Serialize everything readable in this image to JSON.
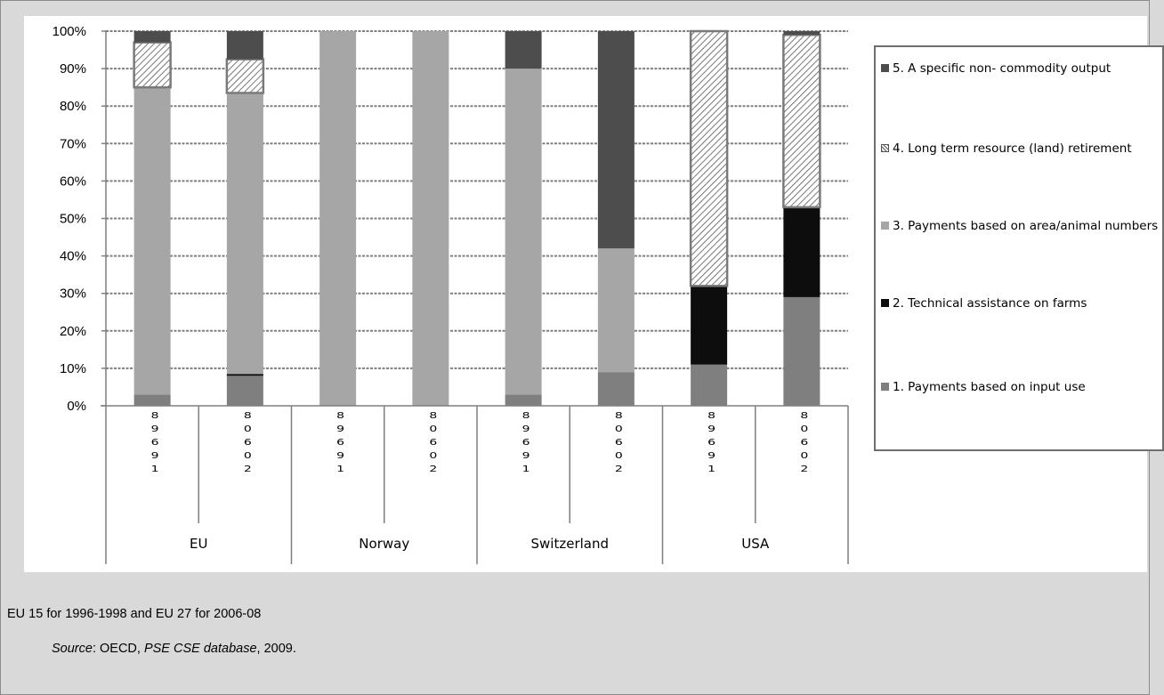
{
  "chart_data": {
    "type": "bar",
    "stacked": true,
    "normalized": true,
    "groups": [
      "EU",
      "Norway",
      "Switzerland",
      "USA"
    ],
    "categories": [
      "1996-98",
      "2006-08",
      "1996-98",
      "2006-08",
      "1996-98",
      "2006-08",
      "1996-98",
      "2006-08"
    ],
    "category_group": [
      0,
      0,
      1,
      1,
      2,
      2,
      3,
      3
    ],
    "category_digits": [
      [
        "8",
        "9",
        "6",
        "9",
        "1"
      ],
      [
        "8",
        "0",
        "6",
        "0",
        "2"
      ],
      [
        "8",
        "9",
        "6",
        "9",
        "1"
      ],
      [
        "8",
        "0",
        "6",
        "0",
        "2"
      ],
      [
        "8",
        "9",
        "6",
        "9",
        "1"
      ],
      [
        "8",
        "0",
        "6",
        "0",
        "2"
      ],
      [
        "8",
        "9",
        "6",
        "9",
        "1"
      ],
      [
        "8",
        "0",
        "6",
        "0",
        "2"
      ]
    ],
    "yticks": [
      "0%",
      "10%",
      "20%",
      "30%",
      "40%",
      "50%",
      "60%",
      "70%",
      "80%",
      "90%",
      "100%"
    ],
    "ylim": [
      0,
      100
    ],
    "grid": true,
    "legend_position": "right",
    "series": [
      {
        "name": "1. Payments based on input use",
        "color": "#7f7f7f",
        "pattern": "solid",
        "values": [
          3,
          8,
          0,
          0,
          3,
          9,
          11,
          29
        ]
      },
      {
        "name": "2. Technical assistance on farms",
        "color": "#0d0d0d",
        "pattern": "solid",
        "values": [
          0,
          0.5,
          0,
          0,
          0,
          0,
          21,
          24
        ]
      },
      {
        "name": "3. Payments based on area/animal numbers",
        "color": "#a6a6a6",
        "pattern": "solid",
        "values": [
          82,
          75,
          100,
          100,
          87,
          33,
          0,
          0
        ]
      },
      {
        "name": "4. Long term resource (land) retirement",
        "color": "#ffffff",
        "pattern": "hatch",
        "values": [
          12,
          9,
          0,
          0,
          0,
          0,
          68,
          46
        ]
      },
      {
        "name": "5. A specific non- commodity output",
        "color": "#4d4d4d",
        "pattern": "solid",
        "values": [
          3,
          7.5,
          0,
          0,
          10,
          58,
          0,
          1
        ]
      }
    ]
  },
  "legend_order": [
    4,
    3,
    2,
    1,
    0
  ],
  "caption": "EU 15 for 1996-1998 and EU 27 for 2006-08",
  "source": {
    "label": "Source",
    "sep1": ": OECD, ",
    "database": "PSE CSE database",
    "sep2": ", 2009."
  }
}
